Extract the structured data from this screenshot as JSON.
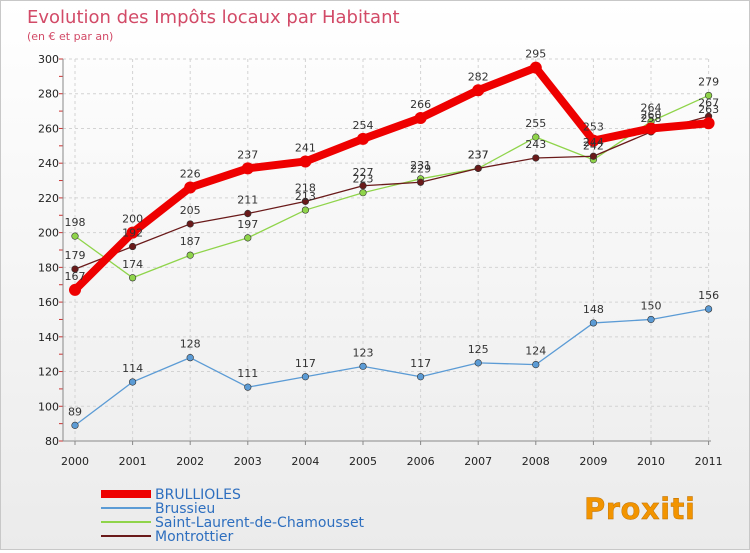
{
  "chart_data": {
    "type": "line",
    "title": "Evolution des Impôts locaux par Habitant",
    "subtitle": "(en € et par an)",
    "categories": [
      "2000",
      "2001",
      "2002",
      "2003",
      "2004",
      "2005",
      "2006",
      "2007",
      "2008",
      "2009",
      "2010",
      "2011"
    ],
    "yticks": [
      80,
      100,
      120,
      140,
      160,
      180,
      200,
      220,
      240,
      260,
      280,
      300
    ],
    "ylim": [
      80,
      300
    ],
    "series": [
      {
        "name": "Saint-Laurent-de-Chamousset",
        "color": "#8fd44a",
        "values": [
          198,
          174,
          187,
          197,
          213,
          223,
          231,
          237,
          255,
          242,
          264,
          279
        ]
      },
      {
        "name": "Montrottier",
        "color": "#6a1a1a",
        "values": [
          179,
          192,
          205,
          211,
          218,
          227,
          229,
          237,
          243,
          244,
          258,
          267
        ]
      },
      {
        "name": "Brussieu",
        "color": "#5b9bd5",
        "values": [
          89,
          114,
          128,
          111,
          117,
          123,
          117,
          125,
          124,
          148,
          150,
          156
        ]
      },
      {
        "name": "BRULLIOLES",
        "color": "#ee0000",
        "values": [
          167,
          200,
          226,
          237,
          241,
          254,
          266,
          282,
          295,
          253,
          260,
          263
        ]
      }
    ],
    "legend": [
      "BRULLIOLES",
      "Brussieu",
      "Saint-Laurent-de-Chamousset",
      "Montrottier"
    ],
    "logo": "Proxiti"
  }
}
